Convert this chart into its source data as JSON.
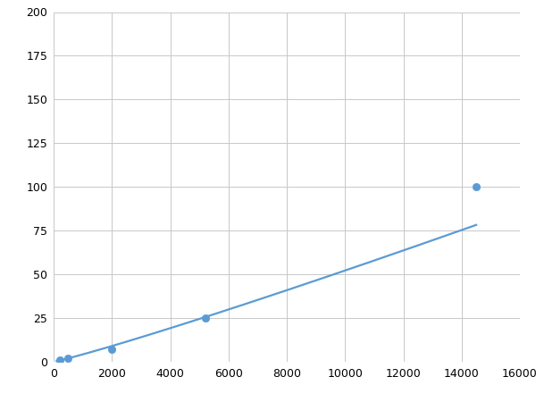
{
  "x": [
    200,
    500,
    800,
    2000,
    5200,
    14500
  ],
  "y": [
    1,
    2,
    2.5,
    7,
    25,
    100
  ],
  "line_color": "#5b9bd5",
  "marker_color": "#5b9bd5",
  "marker_size": 6,
  "line_width": 1.6,
  "xlim": [
    0,
    16000
  ],
  "ylim": [
    0,
    200
  ],
  "xticks": [
    0,
    2000,
    4000,
    6000,
    8000,
    10000,
    12000,
    14000,
    16000
  ],
  "yticks": [
    0,
    25,
    50,
    75,
    100,
    125,
    150,
    175,
    200
  ],
  "grid_color": "#c8c8c8",
  "bg_color": "#ffffff",
  "fig_bg_color": "#ffffff",
  "marker_indices": [
    0,
    1,
    3,
    4,
    5
  ]
}
